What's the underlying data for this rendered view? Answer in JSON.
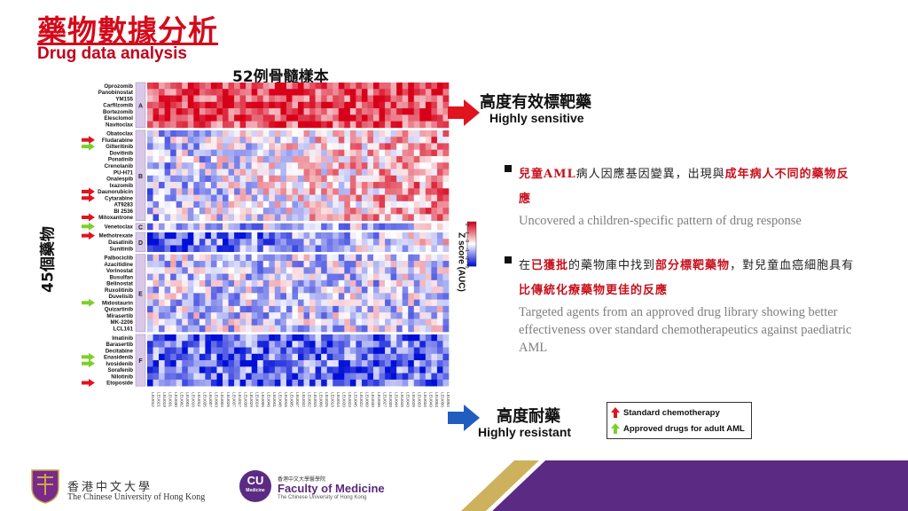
{
  "title_zh": "藥物數據分析",
  "title_en": "Drug data analysis",
  "samples_label": "52例骨髓樣本",
  "drugs_count_label": "45個藥物",
  "zscore_label": "Z score (AUC)",
  "colorbar_ticks": [
    "2",
    "1",
    "0",
    "-1",
    "-2",
    "-3"
  ],
  "sensitive": {
    "zh": "高度有效標靶藥",
    "en": "Highly sensitive"
  },
  "resistant": {
    "zh": "高度耐藥",
    "en": "Highly resistant"
  },
  "bullets": [
    {
      "zh_parts": [
        {
          "text": "兒童AML",
          "hl": true
        },
        {
          "text": "病人因應基因變異，出現與",
          "hl": false
        },
        {
          "text": "成年病人不同的藥物反應",
          "hl": true
        }
      ],
      "en": "Uncovered a children-specific pattern of drug response"
    },
    {
      "zh_parts": [
        {
          "text": "在",
          "hl": false
        },
        {
          "text": "已獲批",
          "hl": true
        },
        {
          "text": "的藥物庫中找到",
          "hl": false
        },
        {
          "text": "部分標靶藥物",
          "hl": true
        },
        {
          "text": "，對兒童血癌細胞具有",
          "hl": false
        },
        {
          "text": "比傳統化療藥物更佳的反應",
          "hl": true
        }
      ],
      "en": "Targeted agents from an approved drug library showing better effectiveness over standard chemotherapeutics against paediatric AML"
    }
  ],
  "legend": [
    {
      "label": "Standard chemotherapy",
      "color": "#e0141e"
    },
    {
      "label": "Approved drugs for adult AML",
      "color": "#7ccf2a"
    }
  ],
  "groups": [
    {
      "id": "A",
      "drugs": [
        "Oprozomib",
        "Panobinostat",
        "YM155",
        "Carfilzomib",
        "Bortezomib",
        "Elesclomol",
        "Navitoclax"
      ]
    },
    {
      "id": "B",
      "drugs": [
        "Obatoclax",
        "Fludarabine",
        "Gilteritinib",
        "Dovitinib",
        "Ponatinib",
        "Crenolanib",
        "PU-H71",
        "Onalespib",
        "Ixazomib",
        "Daunorubicin",
        "Cytarabine",
        "AT9283",
        "BI 2536",
        "Mitoxantrone"
      ]
    },
    {
      "id": "C",
      "drugs": [
        "Venetoclax"
      ]
    },
    {
      "id": "D",
      "drugs": [
        "Methotrexate",
        "Dasatinib",
        "Sunitinib"
      ]
    },
    {
      "id": "E",
      "drugs": [
        "Palbociclib",
        "Azacitidine",
        "Vorinostat",
        "Busulfan",
        "Belinostat",
        "Ruxolitinib",
        "Duvelisib",
        "Midostaurin",
        "Quizartinib",
        "Mirasertib",
        "MK-2206",
        "LCL161"
      ]
    },
    {
      "id": "F",
      "drugs": [
        "Imatinib",
        "Barasertib",
        "Decitabine",
        "Enasidenib",
        "Ivosidenib",
        "Sorafenib",
        "Nilotinib",
        "Etoposide"
      ]
    }
  ],
  "red_arrow_drugs": [
    "Fludarabine",
    "Daunorubicin",
    "Cytarabine",
    "Mitoxantrone",
    "Methotrexate",
    "Etoposide"
  ],
  "green_arrow_drugs": [
    "Gilteritinib",
    "Venetoclax",
    "Midostaurin",
    "Enasidenib",
    "Ivosidenib"
  ],
  "sample_ids": [
    "LEU012",
    "LEU021",
    "LEU019",
    "LEU031",
    "LEU030",
    "LEU002",
    "LEU001",
    "LEU010",
    "LEU011",
    "LEU035",
    "LEU007",
    "LEU003",
    "LEU004",
    "LEU026",
    "LEU037",
    "LEU017",
    "LEU038",
    "LEU029",
    "LEU024",
    "LEU055",
    "LEU046",
    "LEU041",
    "LEU048",
    "LEU016",
    "LEU005",
    "LEU047",
    "LEU042",
    "LEU052",
    "LEU015",
    "LEU006",
    "LEU025",
    "LEU013",
    "LEU014",
    "LEU020",
    "LEU023",
    "LEU045",
    "LEU022",
    "LEU009",
    "LEU040",
    "LEU036",
    "LEU027",
    "LEU039",
    "LEU044",
    "LEU018",
    "LEU043",
    "LEU028",
    "LEU033",
    "LEU034",
    "LEU049",
    "LEU053",
    "LEU050",
    "LEU054"
  ],
  "footer": {
    "cuhk_zh": "香港中文大學",
    "cuhk_en": "The Chinese University of Hong Kong",
    "cu_badge": "CU",
    "cu_badge_sub": "Medicine",
    "faculty_zh": "香港中文大學醫學院",
    "faculty_en": "Faculty of Medicine",
    "faculty_sub": "The Chinese University of Hong Kong"
  },
  "colors": {
    "accent_red": "#d40a1a",
    "purple": "#5b2a82",
    "heat_high": "#c8001a",
    "heat_low": "#0010d8"
  }
}
